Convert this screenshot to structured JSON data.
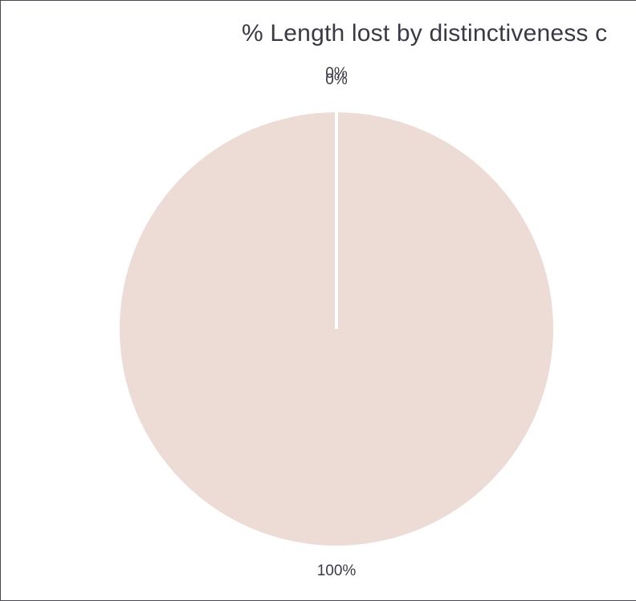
{
  "chart_data": {
    "type": "pie",
    "title": "% Length lost by distinctiveness c",
    "series": [
      {
        "values": [
          0,
          0,
          100
        ],
        "data_labels": [
          "0%",
          "0%",
          "100%"
        ],
        "colors": [
          "#a7757a",
          "#c9a49f",
          "#eddbd5"
        ]
      }
    ],
    "slice_border_color": "#ffffff",
    "start_angle_deg": 0,
    "direction": "clockwise",
    "legend": "none"
  }
}
